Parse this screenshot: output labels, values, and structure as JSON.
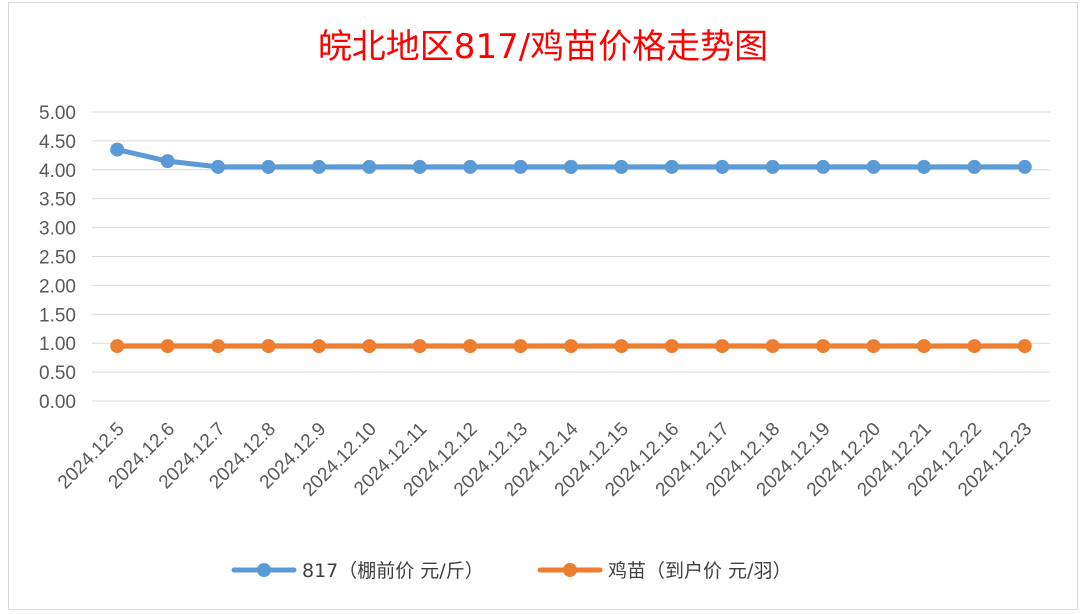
{
  "chart_data": {
    "type": "line",
    "title": "皖北地区817/鸡苗价格走势图",
    "categories": [
      "2024.12.5",
      "2024.12.6",
      "2024.12.7",
      "2024.12.8",
      "2024.12.9",
      "2024.12.10",
      "2024.12.11",
      "2024.12.12",
      "2024.12.13",
      "2024.12.14",
      "2024.12.15",
      "2024.12.16",
      "2024.12.17",
      "2024.12.18",
      "2024.12.19",
      "2024.12.20",
      "2024.12.21",
      "2024.12.22",
      "2024.12.23"
    ],
    "ylim": [
      0,
      5
    ],
    "yticks": [
      "0.00",
      "0.50",
      "1.00",
      "1.50",
      "2.00",
      "2.50",
      "3.00",
      "3.50",
      "4.00",
      "4.50",
      "5.00"
    ],
    "grid": true,
    "legend_position": "bottom",
    "series": [
      {
        "name": "817（棚前价 元/斤）",
        "color": "#5b9bd5",
        "values": [
          4.35,
          4.15,
          4.05,
          4.05,
          4.05,
          4.05,
          4.05,
          4.05,
          4.05,
          4.05,
          4.05,
          4.05,
          4.05,
          4.05,
          4.05,
          4.05,
          4.05,
          4.05,
          4.05
        ]
      },
      {
        "name": "鸡苗（到户价 元/羽）",
        "color": "#ed7d31",
        "values": [
          0.95,
          0.95,
          0.95,
          0.95,
          0.95,
          0.95,
          0.95,
          0.95,
          0.95,
          0.95,
          0.95,
          0.95,
          0.95,
          0.95,
          0.95,
          0.95,
          0.95,
          0.95,
          0.95
        ]
      }
    ]
  }
}
